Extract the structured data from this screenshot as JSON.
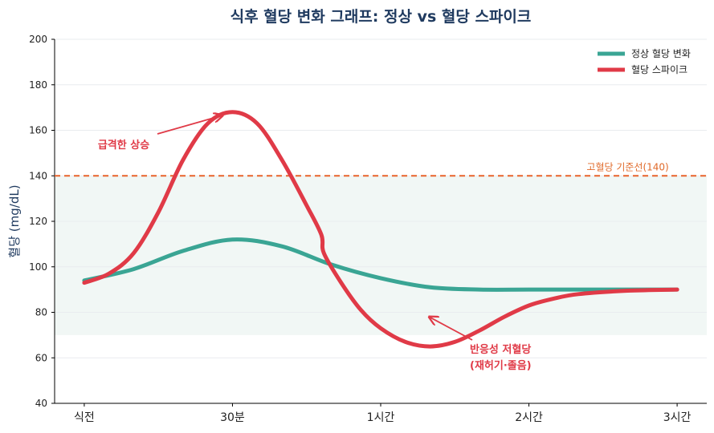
{
  "chart_data": {
    "type": "line",
    "title": "식후 혈당 변화 그래프: 정상 vs 혈당 스파이크",
    "xlabel": "",
    "ylabel": "혈당 (mg/dL)",
    "x_ticks": [
      {
        "value": 0,
        "label": "식전"
      },
      {
        "value": 30,
        "label": "30분"
      },
      {
        "value": 60,
        "label": "1시간"
      },
      {
        "value": 90,
        "label": "2시간"
      },
      {
        "value": 120,
        "label": "3시간"
      }
    ],
    "xlim": [
      -6,
      126
    ],
    "ylim": [
      40,
      200
    ],
    "y_ticks": [
      40,
      60,
      80,
      100,
      120,
      140,
      160,
      180,
      200
    ],
    "grid": true,
    "normal_band": [
      70,
      140
    ],
    "threshold": {
      "value": 140,
      "label": "고혈당 기준선(140)",
      "color": "#e8632b"
    },
    "legend_position": "top-right",
    "series": [
      {
        "name": "정상 혈당 변화",
        "color": "#3aa594",
        "x": [
          0,
          10,
          20,
          30,
          40,
          50,
          60,
          70,
          80,
          90,
          100,
          110,
          120
        ],
        "y": [
          94,
          99,
          107,
          112,
          109,
          101,
          95,
          91,
          90,
          90,
          90,
          90,
          90
        ]
      },
      {
        "name": "혈당 스파이크",
        "color": "#e03a47",
        "x": [
          0,
          5,
          10,
          15,
          20,
          25,
          30,
          35,
          40,
          45,
          48,
          48.5,
          52,
          56,
          60,
          65,
          70,
          75,
          80,
          85,
          90,
          95,
          100,
          110,
          120
        ],
        "y": [
          93,
          97,
          106,
          124,
          147,
          163,
          168,
          163,
          147,
          127,
          114,
          106,
          93,
          81,
          73,
          67,
          65,
          67,
          72,
          78,
          83,
          86,
          88,
          89.5,
          90
        ]
      }
    ],
    "annotations": [
      {
        "text": "급격한 상승",
        "target": {
          "x": 29,
          "y": 168
        }
      },
      {
        "text": "반응성 저혈당",
        "text2": "(재허기·졸음)",
        "target": {
          "x": 69,
          "y": 78
        }
      }
    ]
  }
}
